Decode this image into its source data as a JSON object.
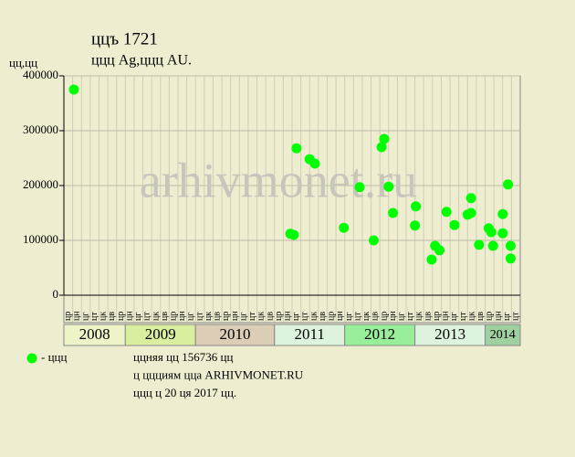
{
  "chart_data": {
    "type": "scatter",
    "title": "ццъ 1721",
    "subtitle": "ццц Ag,ццц AU.",
    "y_unit": "цц,цц",
    "watermark": "arhivmonet.ru",
    "xlim": [
      0,
      52
    ],
    "ylim": [
      0,
      400000
    ],
    "yticks": [
      0,
      100000,
      200000,
      300000,
      400000
    ],
    "grid": true,
    "x_labels": [
      "цр",
      "цн",
      "цг",
      "цт",
      "цк",
      "цв",
      "цр",
      "цн",
      "цг",
      "цт",
      "цк",
      "цв",
      "цр",
      "цн",
      "цг",
      "цт",
      "цк",
      "цв",
      "цр",
      "цн",
      "цг",
      "цт",
      "цк",
      "цв",
      "цр",
      "цн",
      "цг",
      "цт",
      "цк",
      "цв",
      "цр",
      "цн",
      "цг",
      "цт",
      "цк",
      "цв",
      "цр",
      "цн",
      "цг",
      "цт",
      "цк",
      "цв",
      "цр",
      "цн",
      "цг",
      "цт",
      "цк",
      "цв",
      "цр",
      "цн",
      "цг",
      "цт"
    ],
    "x_groups": [
      {
        "label": "2008",
        "columns": 7,
        "color": "#eef4c8"
      },
      {
        "label": "2009",
        "columns": 8,
        "color": "#d9ee9e"
      },
      {
        "label": "2010",
        "columns": 9,
        "color": "#dccdb6"
      },
      {
        "label": "2011",
        "columns": 8,
        "color": "#ddf3dd"
      },
      {
        "label": "2012",
        "columns": 8,
        "color": "#99ee99"
      },
      {
        "label": "2013",
        "columns": 8,
        "color": "#ddf3dd"
      },
      {
        "label": "2014",
        "columns": 4,
        "color": "#9fd09f"
      }
    ],
    "series": [
      {
        "name": "- ццц",
        "color": "#00ff00",
        "x": [
          1.14,
          25.8,
          26.2,
          26.5,
          28.0,
          28.6,
          31.9,
          33.7,
          35.3,
          36.2,
          36.5,
          37.0,
          37.5,
          40.1,
          40.0,
          41.9,
          42.3,
          42.8,
          43.6,
          44.5,
          46.0,
          46.4,
          46.4,
          47.3,
          48.4,
          48.7,
          48.9,
          50.0,
          50.0,
          50.6,
          50.9,
          50.9
        ],
        "values": [
          375000,
          112000,
          110000,
          268000,
          248000,
          240000,
          123000,
          197000,
          100000,
          270000,
          285000,
          198000,
          150000,
          162000,
          127000,
          65000,
          90000,
          82000,
          152000,
          128000,
          147000,
          150000,
          177000,
          92000,
          122000,
          115000,
          90000,
          148000,
          113000,
          202000,
          90000,
          67000
        ]
      }
    ],
    "notes": [
      "ццняя цц 156736 цц",
      "ц ццциям цца ARHIVMONET.RU",
      "ццц ц 20 ця 2017 цц."
    ]
  }
}
